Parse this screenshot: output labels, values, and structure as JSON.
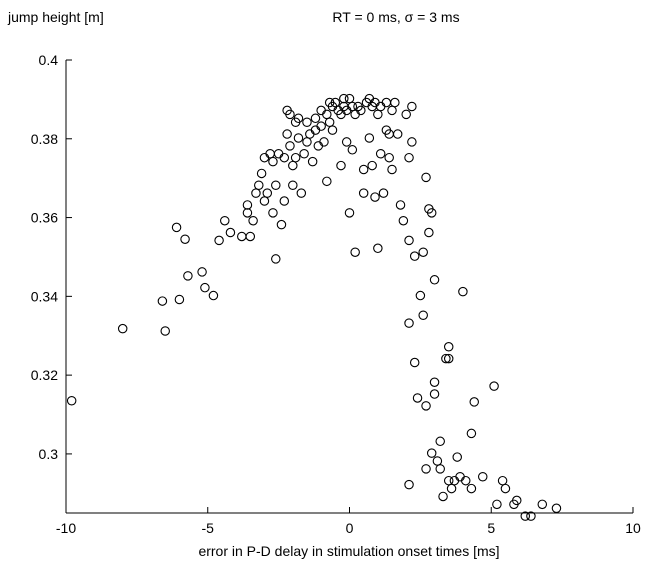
{
  "chart_data": {
    "type": "scatter",
    "title": "RT = 0 ms, σ = 3 ms",
    "xlabel": "error in P-D delay in stimulation onset times [ms]",
    "ylabel": "jump height [m]",
    "xlim": [
      -10,
      10
    ],
    "ylim": [
      0.285,
      0.4
    ],
    "xticks": [
      -10,
      -5,
      0,
      5,
      10
    ],
    "yticks": [
      0.3,
      0.32,
      0.34,
      0.36,
      0.38,
      0.4
    ],
    "xtick_labels": [
      "-10",
      "-5",
      "0",
      "5",
      "10"
    ],
    "ytick_labels": [
      "0.3",
      "0.32",
      "0.34",
      "0.36",
      "0.38",
      "0.4"
    ],
    "grid": false,
    "marker": "open-circle",
    "points": [
      [
        -9.8,
        0.3135
      ],
      [
        -8.0,
        0.3318
      ],
      [
        -6.6,
        0.3388
      ],
      [
        -6.5,
        0.3312
      ],
      [
        -6.1,
        0.3575
      ],
      [
        -6.0,
        0.3392
      ],
      [
        -5.8,
        0.3545
      ],
      [
        -5.7,
        0.3452
      ],
      [
        -5.2,
        0.3462
      ],
      [
        -5.1,
        0.3422
      ],
      [
        -4.8,
        0.3402
      ],
      [
        -4.6,
        0.3542
      ],
      [
        -4.4,
        0.3592
      ],
      [
        -4.2,
        0.3562
      ],
      [
        -3.8,
        0.3552
      ],
      [
        -3.6,
        0.3632
      ],
      [
        -3.6,
        0.3612
      ],
      [
        -3.5,
        0.3552
      ],
      [
        -3.4,
        0.3592
      ],
      [
        -3.3,
        0.3662
      ],
      [
        -3.2,
        0.3682
      ],
      [
        -3.1,
        0.3712
      ],
      [
        -3.0,
        0.3752
      ],
      [
        -3.0,
        0.3642
      ],
      [
        -2.9,
        0.3662
      ],
      [
        -2.8,
        0.3762
      ],
      [
        -2.7,
        0.3742
      ],
      [
        -2.7,
        0.3612
      ],
      [
        -2.6,
        0.3682
      ],
      [
        -2.6,
        0.3495
      ],
      [
        -2.5,
        0.3762
      ],
      [
        -2.4,
        0.3582
      ],
      [
        -2.3,
        0.3752
      ],
      [
        -2.3,
        0.3642
      ],
      [
        -2.2,
        0.3872
      ],
      [
        -2.2,
        0.3812
      ],
      [
        -2.1,
        0.3862
      ],
      [
        -2.1,
        0.3782
      ],
      [
        -2.0,
        0.3732
      ],
      [
        -2.0,
        0.3682
      ],
      [
        -1.9,
        0.3842
      ],
      [
        -1.9,
        0.3752
      ],
      [
        -1.8,
        0.3852
      ],
      [
        -1.8,
        0.3802
      ],
      [
        -1.7,
        0.3662
      ],
      [
        -1.6,
        0.3762
      ],
      [
        -1.5,
        0.3842
      ],
      [
        -1.5,
        0.3792
      ],
      [
        -1.4,
        0.3812
      ],
      [
        -1.3,
        0.3742
      ],
      [
        -1.2,
        0.3852
      ],
      [
        -1.2,
        0.3822
      ],
      [
        -1.1,
        0.3782
      ],
      [
        -1.0,
        0.3872
      ],
      [
        -1.0,
        0.3832
      ],
      [
        -0.9,
        0.3792
      ],
      [
        -0.8,
        0.3862
      ],
      [
        -0.8,
        0.3692
      ],
      [
        -0.7,
        0.3892
      ],
      [
        -0.7,
        0.3842
      ],
      [
        -0.6,
        0.3882
      ],
      [
        -0.6,
        0.3822
      ],
      [
        -0.5,
        0.3892
      ],
      [
        -0.4,
        0.3872
      ],
      [
        -0.3,
        0.3862
      ],
      [
        -0.3,
        0.3732
      ],
      [
        -0.2,
        0.3902
      ],
      [
        -0.2,
        0.3882
      ],
      [
        -0.1,
        0.3872
      ],
      [
        -0.1,
        0.3792
      ],
      [
        0.0,
        0.3902
      ],
      [
        0.0,
        0.3612
      ],
      [
        0.1,
        0.3882
      ],
      [
        0.1,
        0.3772
      ],
      [
        0.2,
        0.3862
      ],
      [
        0.2,
        0.3512
      ],
      [
        0.3,
        0.3882
      ],
      [
        0.4,
        0.3872
      ],
      [
        0.5,
        0.3722
      ],
      [
        0.5,
        0.3662
      ],
      [
        0.6,
        0.3892
      ],
      [
        0.7,
        0.3902
      ],
      [
        0.7,
        0.3802
      ],
      [
        0.8,
        0.3882
      ],
      [
        0.8,
        0.3732
      ],
      [
        0.9,
        0.3892
      ],
      [
        0.9,
        0.3652
      ],
      [
        1.0,
        0.3862
      ],
      [
        1.0,
        0.3522
      ],
      [
        1.1,
        0.3882
      ],
      [
        1.1,
        0.3762
      ],
      [
        1.2,
        0.3662
      ],
      [
        1.3,
        0.3892
      ],
      [
        1.3,
        0.3822
      ],
      [
        1.4,
        0.3812
      ],
      [
        1.4,
        0.3752
      ],
      [
        1.5,
        0.3872
      ],
      [
        1.5,
        0.3722
      ],
      [
        1.6,
        0.3892
      ],
      [
        1.7,
        0.3812
      ],
      [
        1.8,
        0.3632
      ],
      [
        1.9,
        0.3592
      ],
      [
        2.0,
        0.3862
      ],
      [
        2.1,
        0.3752
      ],
      [
        2.1,
        0.3542
      ],
      [
        2.1,
        0.3332
      ],
      [
        2.1,
        0.2922
      ],
      [
        2.2,
        0.3882
      ],
      [
        2.2,
        0.3792
      ],
      [
        2.3,
        0.3502
      ],
      [
        2.3,
        0.3232
      ],
      [
        2.4,
        0.3142
      ],
      [
        2.5,
        0.3402
      ],
      [
        2.6,
        0.3352
      ],
      [
        2.6,
        0.3512
      ],
      [
        2.7,
        0.3702
      ],
      [
        2.7,
        0.3122
      ],
      [
        2.7,
        0.2962
      ],
      [
        2.8,
        0.3622
      ],
      [
        2.8,
        0.3562
      ],
      [
        2.9,
        0.3612
      ],
      [
        2.9,
        0.3002
      ],
      [
        3.0,
        0.3442
      ],
      [
        3.0,
        0.3182
      ],
      [
        3.0,
        0.3152
      ],
      [
        3.1,
        0.2982
      ],
      [
        3.2,
        0.3032
      ],
      [
        3.2,
        0.2962
      ],
      [
        3.3,
        0.2892
      ],
      [
        3.4,
        0.3242
      ],
      [
        3.5,
        0.3272
      ],
      [
        3.5,
        0.3242
      ],
      [
        3.5,
        0.2932
      ],
      [
        3.6,
        0.2912
      ],
      [
        3.7,
        0.2932
      ],
      [
        3.8,
        0.2992
      ],
      [
        3.9,
        0.2942
      ],
      [
        4.0,
        0.3412
      ],
      [
        4.1,
        0.2932
      ],
      [
        4.3,
        0.3052
      ],
      [
        4.3,
        0.2912
      ],
      [
        4.4,
        0.3132
      ],
      [
        4.7,
        0.2942
      ],
      [
        5.1,
        0.3172
      ],
      [
        5.2,
        0.2872
      ],
      [
        5.4,
        0.2932
      ],
      [
        5.5,
        0.2912
      ],
      [
        5.8,
        0.2872
      ],
      [
        5.9,
        0.2882
      ],
      [
        6.2,
        0.2842
      ],
      [
        6.4,
        0.2842
      ],
      [
        6.8,
        0.2872
      ],
      [
        7.3,
        0.2862
      ]
    ]
  }
}
